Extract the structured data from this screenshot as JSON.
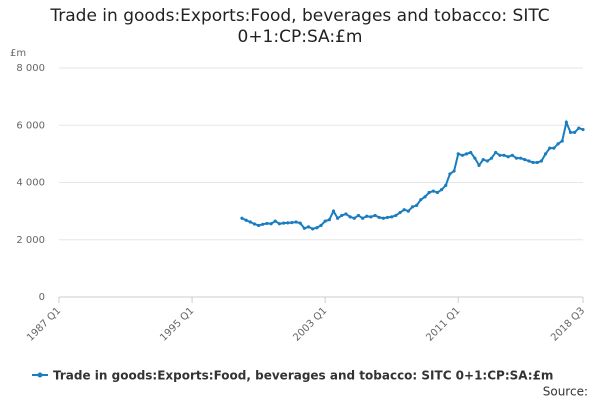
{
  "chart_data": {
    "type": "line",
    "title": "Trade in goods:Exports:Food, beverages and tobacco: SITC 0+1:CP:SA:£m",
    "y_label": "£m",
    "source": "Source:",
    "categories": [
      "1987 Q1",
      null,
      null,
      null,
      null,
      null,
      null,
      null,
      null,
      null,
      null,
      null,
      null,
      null,
      null,
      null,
      null,
      null,
      null,
      null,
      null,
      null,
      null,
      null,
      null,
      null,
      null,
      null,
      null,
      null,
      null,
      null,
      "1995 Q1",
      null,
      null,
      null,
      null,
      null,
      null,
      null,
      null,
      null,
      null,
      null,
      null,
      null,
      null,
      null,
      null,
      null,
      null,
      null,
      null,
      null,
      null,
      null,
      null,
      null,
      null,
      null,
      null,
      null,
      null,
      null,
      "2003 Q1",
      null,
      null,
      null,
      null,
      null,
      null,
      null,
      null,
      null,
      null,
      null,
      null,
      null,
      null,
      null,
      null,
      null,
      null,
      null,
      null,
      null,
      null,
      null,
      null,
      null,
      null,
      null,
      null,
      null,
      null,
      null,
      "2011 Q1",
      null,
      null,
      null,
      null,
      null,
      null,
      null,
      null,
      null,
      null,
      null,
      null,
      null,
      null,
      null,
      null,
      null,
      null,
      null,
      null,
      null,
      null,
      null,
      null,
      null,
      null,
      null,
      null,
      null,
      "2018 Q3"
    ],
    "series": [
      {
        "name": "Trade in goods:Exports:Food, beverages and tobacco: SITC 0+1:CP:SA:£m",
        "color": "#1a7dbf",
        "values": [
          null,
          null,
          null,
          null,
          null,
          null,
          null,
          null,
          null,
          null,
          null,
          null,
          null,
          null,
          null,
          null,
          null,
          null,
          null,
          null,
          null,
          null,
          null,
          null,
          null,
          null,
          null,
          null,
          null,
          null,
          null,
          null,
          null,
          null,
          null,
          null,
          null,
          null,
          null,
          null,
          null,
          null,
          null,
          null,
          2750,
          2680,
          2620,
          2550,
          2500,
          2540,
          2570,
          2560,
          2650,
          2560,
          2580,
          2590,
          2600,
          2620,
          2580,
          2400,
          2450,
          2380,
          2420,
          2500,
          2650,
          2700,
          3000,
          2750,
          2850,
          2900,
          2800,
          2750,
          2850,
          2750,
          2820,
          2800,
          2850,
          2780,
          2750,
          2780,
          2800,
          2850,
          2950,
          3050,
          3000,
          3150,
          3200,
          3400,
          3500,
          3650,
          3700,
          3650,
          3750,
          3900,
          4300,
          4400,
          5000,
          4950,
          5000,
          5050,
          4850,
          4600,
          4800,
          4750,
          4850,
          5050,
          4950,
          4950,
          4900,
          4950,
          4850,
          4850,
          4800,
          4750,
          4700,
          4700,
          4750,
          5000,
          5200,
          5200,
          5350,
          5450,
          6100,
          5750,
          5750,
          5900,
          5850
        ]
      }
    ],
    "ylim": [
      0,
      8000
    ],
    "yticks": [
      0,
      {
        "value": 2000,
        "label": "2 000"
      },
      {
        "value": 4000,
        "label": "4 000"
      },
      {
        "value": 6000,
        "label": "6 000"
      },
      {
        "value": 8000,
        "label": "8 000"
      }
    ],
    "grid": true
  }
}
